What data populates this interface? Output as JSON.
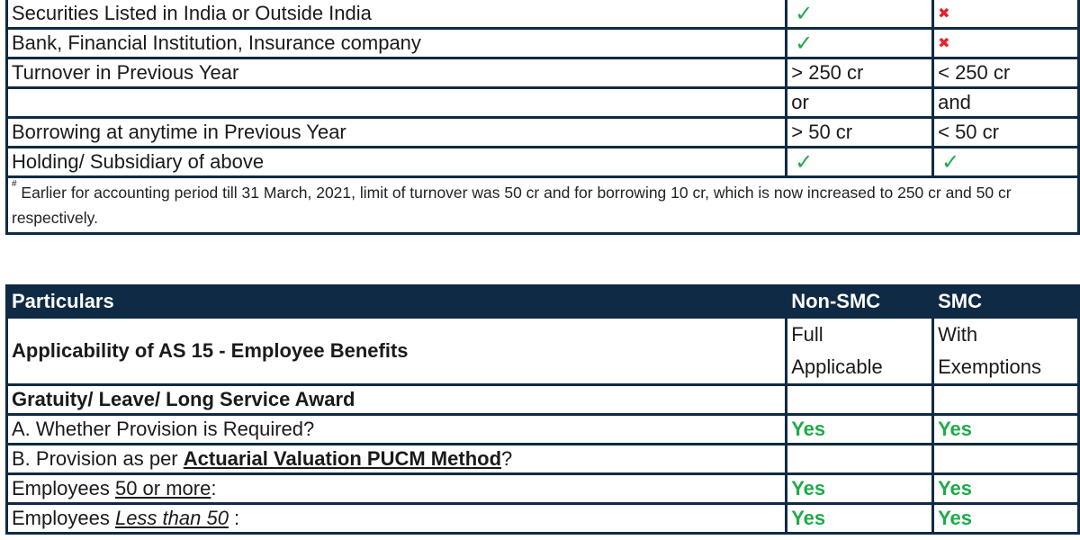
{
  "table1": {
    "rows": [
      {
        "label": "Securities Listed in India or Outside India",
        "col2_icon": "check-icon",
        "col2": "✓",
        "col3_icon": "cross-icon",
        "col3": "✖"
      },
      {
        "label": "Bank, Financial Institution, Insurance company",
        "col2_icon": "check-icon",
        "col2": "✓",
        "col3_icon": "cross-icon",
        "col3": "✖"
      },
      {
        "label": "Turnover in Previous Year",
        "col2": "> 250 cr",
        "col3": "< 250 cr"
      },
      {
        "label": "",
        "col2": "or",
        "col3": "and"
      },
      {
        "label": "Borrowing at anytime in Previous Year",
        "col2": "> 50 cr",
        "col3": "< 50 cr"
      },
      {
        "label": "Holding/ Subsidiary of above",
        "col2_icon": "check-icon",
        "col2": "✓",
        "col3_icon": "check-icon",
        "col3": "✓"
      }
    ],
    "footnote": {
      "marker": "#",
      "text": " Earlier for accounting period till 31 March, 2021, limit of turnover was 50 cr and for borrowing 10 cr, which is now increased to 250 cr and 50 cr respectively."
    }
  },
  "table2": {
    "header": {
      "particulars": "Particulars",
      "non_smc": "Non-SMC",
      "smc": "SMC"
    },
    "rows": [
      {
        "label": "Applicability of AS 15 - Employee Benefits",
        "non_smc_line1": "Full",
        "non_smc_line2": "Applicable",
        "smc_line1": "With",
        "smc_line2": "Exemptions"
      },
      {
        "label": "Gratuity/ Leave/ Long Service Award",
        "non_smc": "",
        "smc": ""
      },
      {
        "label": "A. Whether Provision is Required?",
        "non_smc": "Yes",
        "smc": "Yes"
      },
      {
        "label_prefix": "B. Provision as per ",
        "label_emph": "Actuarial Valuation PUCM Method",
        "label_suffix": "?",
        "non_smc": "",
        "smc": ""
      },
      {
        "label_prefix": "Employees ",
        "label_emph": "50 or more",
        "label_suffix": ":",
        "non_smc": "Yes",
        "smc": "Yes"
      },
      {
        "label_prefix": "Employees ",
        "label_emph": "Less than 50",
        "label_suffix": " :",
        "non_smc": "Yes",
        "smc": "Yes"
      }
    ]
  },
  "colors": {
    "border": "#0f2a44",
    "header_bg": "#0f2a44",
    "yes_green": "#1faa4a",
    "cross_red": "#e8202a"
  }
}
